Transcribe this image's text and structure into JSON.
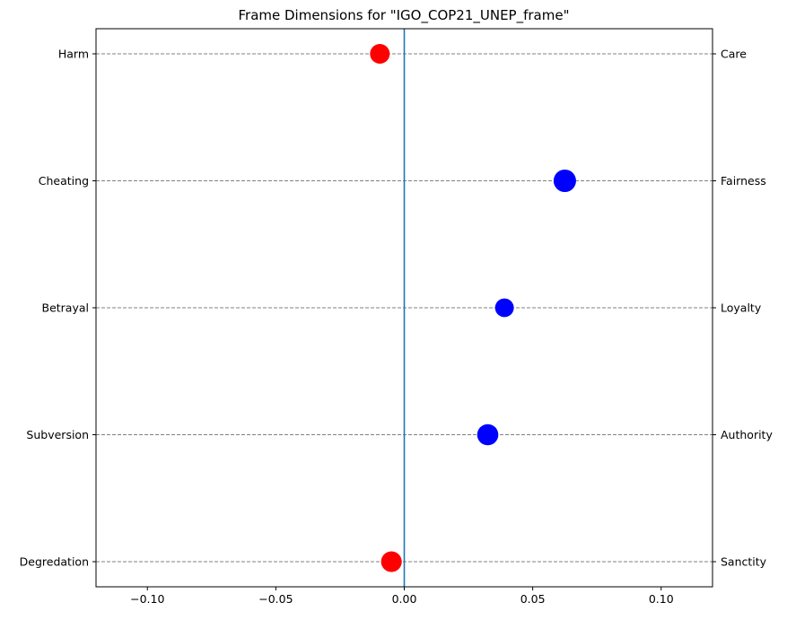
{
  "chart_data": {
    "type": "scatter",
    "title": "Frame Dimensions for \"IGO_COP21_UNEP_frame\"",
    "xlabel": "",
    "ylabel": "",
    "xlim": [
      -0.12,
      0.12
    ],
    "x_ticks": [
      -0.1,
      -0.05,
      0.0,
      0.05,
      0.1
    ],
    "x_tick_labels": [
      "−0.10",
      "−0.05",
      "0.00",
      "0.05",
      "0.10"
    ],
    "left_labels": [
      "Harm",
      "Cheating",
      "Betrayal",
      "Subversion",
      "Degredation"
    ],
    "right_labels": [
      "Care",
      "Fairness",
      "Loyalty",
      "Authority",
      "Sanctity"
    ],
    "grid": "horizontal dashed",
    "zero_line": true,
    "points": [
      {
        "left": "Harm",
        "right": "Care",
        "x": -0.0095,
        "color": "#ff0000",
        "size": 1.0
      },
      {
        "left": "Cheating",
        "right": "Fairness",
        "x": 0.0625,
        "color": "#0000ff",
        "size": 1.3
      },
      {
        "left": "Betrayal",
        "right": "Loyalty",
        "x": 0.039,
        "color": "#0000ff",
        "size": 0.9
      },
      {
        "left": "Subversion",
        "right": "Authority",
        "x": 0.0325,
        "color": "#0000ff",
        "size": 1.15
      },
      {
        "left": "Degredation",
        "right": "Sanctity",
        "x": -0.005,
        "color": "#ff0000",
        "size": 1.1
      }
    ],
    "colors": {
      "positive": "#0000ff",
      "negative": "#ff0000",
      "zero_line": "#1f77b4",
      "grid": "#808080"
    }
  }
}
